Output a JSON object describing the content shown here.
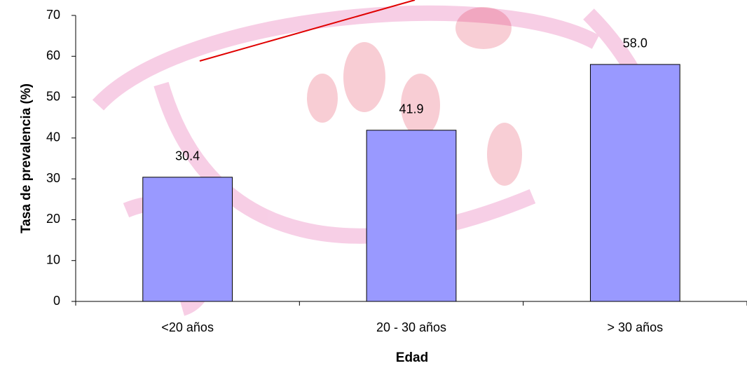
{
  "chart_data": {
    "type": "bar",
    "x_label": "Edad",
    "y_label": "Tasa de prevalencia (%)",
    "categories": [
      "<20 años",
      "20 - 30 años",
      "> 30 años"
    ],
    "values": [
      30.4,
      41.9,
      58.0
    ],
    "value_labels": [
      "30.4",
      "41.9",
      "58.0"
    ],
    "color": "#9999ff",
    "ylim": [
      0,
      70
    ],
    "yticks": [
      0,
      10,
      20,
      30,
      40,
      50,
      60,
      70
    ],
    "grid": false
  }
}
